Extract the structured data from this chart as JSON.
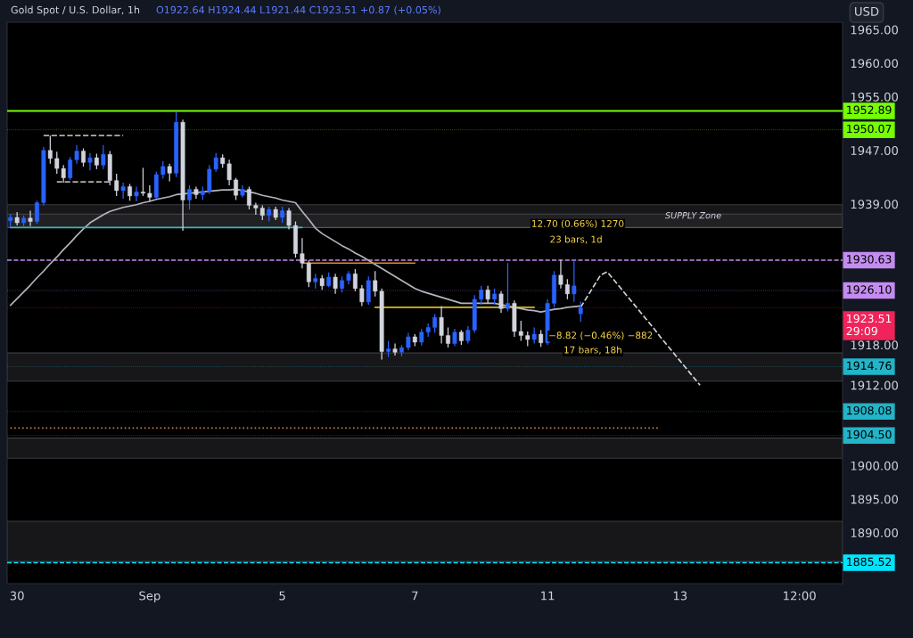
{
  "chart_data": {
    "type": "candlestick",
    "title": "Gold Spot / U.S. Dollar, 1h",
    "subtitle": "O1922.64 H1924.44 L1921.44 C1923.51 +0.87 (+0.05%)",
    "ylabel": "USD",
    "categories": [
      null,
      "30",
      null,
      null,
      null,
      null,
      null,
      null,
      null,
      null,
      null,
      null,
      null,
      null,
      null,
      null,
      null,
      null,
      null,
      null,
      null,
      "Sep",
      null,
      null,
      null,
      null,
      null,
      null,
      null,
      null,
      null,
      null,
      null,
      null,
      null,
      null,
      null,
      null,
      null,
      null,
      null,
      "5",
      null,
      null,
      null,
      null,
      null,
      null,
      null,
      null,
      null,
      null,
      null,
      null,
      null,
      null,
      null,
      null,
      null,
      null,
      null,
      "7",
      null,
      null,
      null,
      null,
      null,
      null,
      null,
      null,
      null,
      null,
      null,
      null,
      null,
      null,
      null,
      null,
      null,
      null,
      null,
      "11",
      null,
      null,
      null,
      null,
      null,
      null,
      null,
      null,
      null,
      null,
      null,
      null,
      null,
      null,
      null,
      null,
      null,
      null,
      null,
      "13",
      null,
      null,
      null,
      null,
      null,
      null,
      null,
      null,
      null,
      null,
      null,
      null,
      null,
      null,
      null,
      null,
      null,
      "12:00",
      null,
      null,
      null,
      null,
      null,
      null
    ],
    "ohlc": [
      [
        1936.5,
        1937.5,
        1935.6,
        1937.0
      ],
      [
        1937.0,
        1937.8,
        1935.8,
        1936.2
      ],
      [
        1936.2,
        1937.3,
        1935.5,
        1936.9
      ],
      [
        1936.9,
        1938.0,
        1935.7,
        1936.4
      ],
      [
        1936.4,
        1939.5,
        1936.0,
        1939.2
      ],
      [
        1939.2,
        1947.5,
        1938.8,
        1947.0
      ],
      [
        1947.0,
        1949.2,
        1945.0,
        1945.8
      ],
      [
        1945.8,
        1946.8,
        1943.5,
        1944.3
      ],
      [
        1944.3,
        1944.8,
        1942.2,
        1942.9
      ],
      [
        1942.9,
        1946.0,
        1942.6,
        1945.6
      ],
      [
        1945.6,
        1947.8,
        1945.0,
        1946.9
      ],
      [
        1946.9,
        1947.3,
        1944.6,
        1945.2
      ],
      [
        1945.2,
        1946.6,
        1944.0,
        1945.9
      ],
      [
        1945.9,
        1946.5,
        1944.2,
        1944.8
      ],
      [
        1944.8,
        1947.8,
        1944.2,
        1946.4
      ],
      [
        1946.4,
        1946.9,
        1941.8,
        1942.5
      ],
      [
        1942.5,
        1943.5,
        1940.2,
        1941.0
      ],
      [
        1941.0,
        1942.2,
        1939.8,
        1941.6
      ],
      [
        1941.6,
        1942.0,
        1939.5,
        1940.2
      ],
      [
        1940.2,
        1941.6,
        1939.4,
        1940.8
      ],
      [
        1940.8,
        1944.4,
        1940.2,
        1940.6
      ],
      [
        1940.6,
        1941.8,
        1939.4,
        1940.0
      ],
      [
        1940.0,
        1943.8,
        1939.8,
        1943.4
      ],
      [
        1943.4,
        1945.4,
        1942.8,
        1944.6
      ],
      [
        1944.6,
        1945.0,
        1942.4,
        1943.6
      ],
      [
        1943.6,
        1952.8,
        1943.0,
        1951.2
      ],
      [
        1951.2,
        1951.6,
        1935.0,
        1939.6
      ],
      [
        1939.6,
        1941.8,
        1938.2,
        1941.2
      ],
      [
        1941.2,
        1941.6,
        1939.8,
        1940.4
      ],
      [
        1940.4,
        1941.6,
        1939.6,
        1940.9
      ],
      [
        1940.9,
        1944.8,
        1940.5,
        1944.2
      ],
      [
        1944.2,
        1946.6,
        1943.8,
        1945.9
      ],
      [
        1945.9,
        1946.4,
        1944.4,
        1945.0
      ],
      [
        1945.0,
        1945.6,
        1941.8,
        1942.6
      ],
      [
        1942.6,
        1942.9,
        1939.6,
        1940.3
      ],
      [
        1940.3,
        1941.8,
        1940.0,
        1941.2
      ],
      [
        1941.2,
        1941.6,
        1938.2,
        1938.8
      ],
      [
        1938.8,
        1939.2,
        1937.4,
        1938.4
      ],
      [
        1938.4,
        1938.8,
        1936.6,
        1937.3
      ],
      [
        1937.3,
        1938.6,
        1936.4,
        1938.2
      ],
      [
        1938.2,
        1938.6,
        1936.6,
        1937.0
      ],
      [
        1937.0,
        1938.6,
        1936.2,
        1938.0
      ],
      [
        1938.0,
        1938.4,
        1935.2,
        1935.8
      ],
      [
        1935.8,
        1936.4,
        1931.0,
        1931.6
      ],
      [
        1931.6,
        1933.9,
        1929.4,
        1930.2
      ],
      [
        1930.2,
        1930.6,
        1926.6,
        1927.4
      ],
      [
        1927.4,
        1928.6,
        1926.4,
        1927.9
      ],
      [
        1927.9,
        1928.4,
        1926.2,
        1926.8
      ],
      [
        1926.8,
        1928.8,
        1926.6,
        1928.1
      ],
      [
        1928.1,
        1928.6,
        1925.6,
        1926.4
      ],
      [
        1926.4,
        1928.2,
        1925.8,
        1927.6
      ],
      [
        1927.6,
        1929.0,
        1927.0,
        1928.6
      ],
      [
        1928.6,
        1929.3,
        1926.0,
        1926.4
      ],
      [
        1926.4,
        1926.9,
        1923.8,
        1924.4
      ],
      [
        1924.4,
        1928.2,
        1924.0,
        1927.6
      ],
      [
        1927.6,
        1929.0,
        1925.2,
        1926.0
      ],
      [
        1926.0,
        1926.4,
        1915.8,
        1917.0
      ],
      [
        1917.0,
        1918.6,
        1916.2,
        1917.4
      ],
      [
        1917.4,
        1918.2,
        1916.4,
        1916.9
      ],
      [
        1916.9,
        1918.0,
        1916.3,
        1917.6
      ],
      [
        1917.6,
        1919.8,
        1917.2,
        1919.2
      ],
      [
        1919.2,
        1919.6,
        1917.8,
        1918.4
      ],
      [
        1918.4,
        1920.4,
        1917.9,
        1919.9
      ],
      [
        1919.9,
        1921.2,
        1919.2,
        1920.6
      ],
      [
        1920.6,
        1922.6,
        1919.8,
        1922.1
      ],
      [
        1922.1,
        1923.8,
        1918.2,
        1919.4
      ],
      [
        1919.4,
        1920.6,
        1917.6,
        1918.2
      ],
      [
        1918.2,
        1920.4,
        1917.8,
        1919.9
      ],
      [
        1919.9,
        1920.2,
        1918.0,
        1918.6
      ],
      [
        1918.6,
        1920.8,
        1918.2,
        1920.2
      ],
      [
        1920.2,
        1925.4,
        1919.8,
        1924.8
      ],
      [
        1924.8,
        1926.8,
        1924.0,
        1926.2
      ],
      [
        1926.2,
        1926.8,
        1924.2,
        1924.8
      ],
      [
        1924.8,
        1926.4,
        1924.0,
        1925.6
      ],
      [
        1925.6,
        1926.0,
        1922.8,
        1923.4
      ],
      [
        1923.4,
        1930.2,
        1923.0,
        1924.2
      ],
      [
        1924.2,
        1924.6,
        1919.2,
        1920.0
      ],
      [
        1920.0,
        1921.6,
        1918.6,
        1919.4
      ],
      [
        1919.4,
        1920.0,
        1917.8,
        1918.8
      ],
      [
        1918.8,
        1920.6,
        1918.2,
        1919.6
      ],
      [
        1919.6,
        1920.2,
        1917.7,
        1918.3
      ],
      [
        1918.3,
        1924.8,
        1918.0,
        1924.2
      ],
      [
        1924.2,
        1929.0,
        1923.6,
        1928.4
      ],
      [
        1928.4,
        1930.7,
        1926.4,
        1927.0
      ],
      [
        1927.0,
        1927.8,
        1924.8,
        1925.6
      ],
      [
        1925.6,
        1930.6,
        1924.4,
        1926.8
      ],
      [
        1922.64,
        1924.44,
        1921.44,
        1923.51
      ],
      null,
      null,
      null,
      null,
      null,
      null,
      null,
      null,
      null,
      null,
      null,
      null,
      null,
      null,
      null,
      null,
      null,
      null,
      null,
      null,
      null,
      null,
      null,
      null,
      null,
      null,
      null,
      null,
      null,
      null,
      null,
      null,
      null,
      null,
      null,
      null,
      null,
      null,
      null
    ],
    "colors": [
      "#2962ff",
      "#d1d4dc",
      "#2962ff",
      "#d1d4dc",
      "#2962ff",
      "#2962ff",
      "#d1d4dc",
      "#d1d4dc",
      "#d1d4dc",
      "#2962ff",
      "#2962ff",
      "#d1d4dc",
      "#2962ff",
      "#d1d4dc",
      "#2962ff",
      "#d1d4dc",
      "#d1d4dc",
      "#2962ff",
      "#d1d4dc",
      "#2962ff",
      "#d1d4dc",
      "#d1d4dc",
      "#2962ff",
      "#2962ff",
      "#d1d4dc",
      "#2962ff",
      "#d1d4dc",
      "#2962ff",
      "#d1d4dc",
      "#2962ff",
      "#2962ff",
      "#2962ff",
      "#d1d4dc",
      "#d1d4dc",
      "#d1d4dc",
      "#2962ff",
      "#d1d4dc",
      "#d1d4dc",
      "#d1d4dc",
      "#2962ff",
      "#d1d4dc",
      "#2962ff",
      "#d1d4dc",
      "#d1d4dc",
      "#d1d4dc",
      "#d1d4dc",
      "#2962ff",
      "#d1d4dc",
      "#2962ff",
      "#d1d4dc",
      "#2962ff",
      "#2962ff",
      "#d1d4dc",
      "#d1d4dc",
      "#2962ff",
      "#d1d4dc",
      "#d1d4dc",
      "#2962ff",
      "#d1d4dc",
      "#2962ff",
      "#2962ff",
      "#d1d4dc",
      "#2962ff",
      "#2962ff",
      "#2962ff",
      "#d1d4dc",
      "#d1d4dc",
      "#2962ff",
      "#d1d4dc",
      "#2962ff",
      "#2962ff",
      "#2962ff",
      "#d1d4dc",
      "#2962ff",
      "#d1d4dc",
      "#2962ff",
      "#d1d4dc",
      "#d1d4dc",
      "#d1d4dc",
      "#2962ff",
      "#d1d4dc",
      "#2962ff",
      "#2962ff",
      "#d1d4dc",
      "#d1d4dc",
      "#2962ff",
      "#2962ff",
      null,
      null,
      null,
      null,
      null,
      null,
      null,
      null,
      null,
      null,
      null,
      null,
      null,
      null,
      null,
      null,
      null,
      null,
      null,
      null,
      null,
      null,
      null,
      null,
      null,
      null,
      null,
      null,
      null,
      null,
      null,
      null,
      null,
      null,
      null,
      null,
      null,
      null,
      null
    ],
    "series": [
      {
        "type": "line",
        "color": "#b2b5be",
        "line_style": "solid",
        "values": [
          1923.9,
          1924.9,
          1925.9,
          1926.9,
          1928.0,
          1929.0,
          1930.1,
          1931.1,
          1932.2,
          1933.2,
          1934.3,
          1935.3,
          1936.2,
          1936.8,
          1937.4,
          1937.9,
          1938.2,
          1938.5,
          1938.7,
          1938.9,
          1939.2,
          1939.4,
          1939.7,
          1939.9,
          1940.1,
          1940.4,
          1940.5,
          1940.6,
          1940.7,
          1940.8,
          1940.9,
          1941.0,
          1941.1,
          1941.1,
          1941.2,
          1941.0,
          1940.8,
          1940.6,
          1940.3,
          1940.1,
          1939.9,
          1939.6,
          1939.4,
          1939.2,
          1937.9,
          1936.7,
          1935.4,
          1934.6,
          1934.0,
          1933.4,
          1932.8,
          1932.3,
          1931.7,
          1931.2,
          1930.6,
          1930.0,
          1929.4,
          1928.8,
          1928.2,
          1927.6,
          1927.0,
          1926.4,
          1926.0,
          1925.7,
          1925.4,
          1925.1,
          1924.8,
          1924.5,
          1924.2,
          1924.2,
          1924.2,
          1924.2,
          1924.2,
          1924.2,
          1924.0,
          1923.8,
          1923.6,
          1923.4,
          1923.2,
          1923.1,
          1922.9,
          1923.1,
          1923.3,
          1923.4,
          1923.6,
          1923.7,
          1923.8,
          null,
          null,
          null,
          null,
          null,
          null,
          null,
          null,
          null,
          null,
          null,
          null,
          null,
          null,
          null,
          null,
          null,
          null,
          null,
          null,
          null,
          null,
          null,
          null,
          null,
          null,
          null,
          null,
          null,
          null,
          null,
          null,
          null,
          null,
          null,
          null,
          null,
          null,
          null
        ]
      },
      {
        "type": "line",
        "color": "#b0b0b0",
        "line_style": "dashed",
        "values": [
          null,
          null,
          null,
          null,
          null,
          1949.2,
          1949.2,
          1949.2,
          1949.2,
          1949.2,
          1949.2,
          1949.2,
          1949.2,
          1949.2,
          1949.2,
          1949.2,
          1949.2,
          1949.2,
          null,
          null,
          null,
          null,
          null,
          null,
          null,
          null,
          null,
          null,
          null,
          null,
          null,
          null,
          null,
          null,
          null,
          null,
          null,
          null,
          null,
          null,
          null,
          null,
          null,
          null,
          null,
          null,
          null,
          null,
          null,
          null,
          null,
          null,
          null,
          null,
          null,
          null,
          null,
          null,
          null,
          null,
          null,
          null,
          null,
          null,
          null,
          null,
          null,
          null,
          null,
          null,
          null,
          null,
          null,
          null,
          null,
          null,
          null,
          null,
          null,
          null,
          null,
          null,
          null,
          null,
          null,
          null,
          null,
          null,
          null,
          null,
          null,
          null,
          null,
          null,
          null,
          null,
          null,
          null,
          null,
          null,
          null,
          null,
          null,
          null,
          null,
          null,
          null,
          null,
          null,
          null,
          null,
          null,
          null,
          null,
          null,
          null,
          null,
          null,
          null,
          null,
          null,
          null,
          null,
          null,
          null,
          null
        ]
      },
      {
        "type": "line",
        "color": "#b0b0b0",
        "line_style": "dashed",
        "values": [
          null,
          null,
          null,
          null,
          null,
          null,
          null,
          1942.3,
          1942.3,
          1942.3,
          1942.3,
          1942.3,
          1942.3,
          1942.3,
          1942.3,
          1942.3,
          null,
          null,
          null,
          null,
          null,
          null,
          null,
          null,
          null,
          null,
          null,
          null,
          null,
          null,
          null,
          null,
          null,
          null,
          null,
          null,
          null,
          null,
          null,
          null,
          null,
          null,
          null,
          null,
          null,
          null,
          null,
          null,
          null,
          null,
          null,
          null,
          null,
          null,
          null,
          null,
          null,
          null,
          null,
          null,
          null,
          null,
          null,
          null,
          null,
          null,
          null,
          null,
          null,
          null,
          null,
          null,
          null,
          null,
          null,
          null,
          null,
          null,
          null,
          null,
          null,
          null,
          null,
          null,
          null,
          null,
          null,
          null,
          null,
          null,
          null,
          null,
          null,
          null,
          null,
          null,
          null,
          null,
          null,
          null,
          null,
          null,
          null,
          null,
          null,
          null,
          null,
          null,
          null,
          null,
          null,
          null,
          null,
          null,
          null,
          null,
          null,
          null,
          null,
          null,
          null,
          null,
          null,
          null,
          null,
          null
        ]
      },
      {
        "type": "line",
        "color": "#3fb3b3",
        "line_style": "solid",
        "values": [
          1935.5,
          1935.5,
          1935.5,
          1935.5,
          1935.5,
          1935.5,
          1935.5,
          1935.5,
          1935.5,
          1935.5,
          1935.5,
          1935.5,
          1935.5,
          1935.5,
          1935.5,
          1935.5,
          1935.5,
          1935.5,
          1935.5,
          1935.5,
          1935.5,
          1935.5,
          1935.5,
          1935.5,
          1935.5,
          1935.5,
          1935.5,
          1935.5,
          1935.5,
          1935.5,
          1935.5,
          1935.5,
          1935.5,
          1935.5,
          1935.5,
          1935.5,
          1935.5,
          1935.5,
          1935.5,
          1935.5,
          1935.5,
          1935.5,
          1935.5,
          1935.5,
          1935.5,
          null,
          null,
          null,
          null,
          null,
          null,
          null,
          null,
          null,
          null,
          null,
          null,
          null,
          null,
          null,
          null,
          null,
          null,
          null,
          null,
          null,
          null,
          null,
          null,
          null,
          null,
          null,
          null,
          null,
          null,
          null,
          null,
          null,
          null,
          null,
          null,
          null,
          null,
          null,
          null,
          null,
          null,
          null,
          null,
          null,
          null,
          null,
          null,
          null,
          null,
          null,
          null,
          null,
          null,
          null,
          null,
          null,
          null,
          null,
          null,
          null,
          null,
          null,
          null,
          null,
          null,
          null,
          null,
          null,
          null,
          null,
          null,
          null,
          null,
          null,
          null,
          null,
          null,
          null,
          null,
          null
        ]
      },
      {
        "type": "line",
        "color": "#e08a2a",
        "line_style": "solid",
        "values": [
          null,
          null,
          null,
          null,
          null,
          null,
          null,
          null,
          null,
          null,
          null,
          null,
          null,
          null,
          null,
          null,
          null,
          null,
          null,
          null,
          null,
          null,
          null,
          null,
          null,
          null,
          null,
          null,
          null,
          null,
          null,
          null,
          null,
          null,
          null,
          null,
          null,
          null,
          null,
          null,
          null,
          null,
          null,
          null,
          1930.2,
          1930.2,
          1930.2,
          1930.2,
          1930.2,
          1930.2,
          1930.2,
          1930.2,
          1930.2,
          1930.2,
          1930.2,
          1930.2,
          1930.2,
          1930.2,
          1930.2,
          1930.2,
          1930.2,
          1930.2,
          null,
          null,
          null,
          null,
          null,
          null,
          null,
          null,
          null,
          null,
          null,
          null,
          null,
          null,
          null,
          null,
          null,
          null,
          null,
          null,
          null,
          null,
          null,
          null,
          null,
          null,
          null,
          null,
          null,
          null,
          null,
          null,
          null,
          null,
          null,
          null,
          null,
          null,
          null,
          null,
          null,
          null,
          null,
          null,
          null,
          null,
          null,
          null,
          null,
          null,
          null,
          null,
          null,
          null,
          null,
          null,
          null,
          null,
          null,
          null,
          null,
          null,
          null,
          null
        ]
      },
      {
        "type": "line",
        "color": "#d4b82a",
        "line_style": "solid",
        "values": [
          null,
          null,
          null,
          null,
          null,
          null,
          null,
          null,
          null,
          null,
          null,
          null,
          null,
          null,
          null,
          null,
          null,
          null,
          null,
          null,
          null,
          null,
          null,
          null,
          null,
          null,
          null,
          null,
          null,
          null,
          null,
          null,
          null,
          null,
          null,
          null,
          null,
          null,
          null,
          null,
          null,
          null,
          null,
          null,
          null,
          null,
          null,
          null,
          null,
          null,
          null,
          null,
          null,
          null,
          null,
          1923.6,
          1923.6,
          1923.6,
          1923.6,
          1923.6,
          1923.6,
          1923.6,
          1923.6,
          1923.6,
          1923.6,
          1923.6,
          1923.6,
          1923.6,
          1923.6,
          1923.6,
          1923.6,
          1923.6,
          1923.6,
          1923.6,
          1923.6,
          1923.6,
          1923.6,
          1923.6,
          1923.6,
          1923.6,
          null,
          null,
          null,
          null,
          null,
          null,
          null,
          null,
          null,
          null,
          null,
          null,
          null,
          null,
          null,
          null,
          null,
          null,
          null,
          null,
          null,
          null,
          null,
          null,
          null,
          null,
          null,
          null,
          null,
          null,
          null,
          null,
          null,
          null,
          null,
          null,
          null,
          null,
          null,
          null,
          null,
          null,
          null,
          null,
          null,
          null
        ]
      },
      {
        "type": "line",
        "color": "#c08040",
        "line_style": "dotted",
        "values": [
          1905.6,
          1905.6,
          1905.6,
          1905.6,
          1905.6,
          1905.6,
          1905.6,
          1905.6,
          1905.6,
          1905.6,
          1905.6,
          1905.6,
          1905.6,
          1905.6,
          1905.6,
          1905.6,
          1905.6,
          1905.6,
          1905.6,
          1905.6,
          1905.6,
          1905.6,
          1905.6,
          1905.6,
          1905.6,
          1905.6,
          1905.6,
          1905.6,
          1905.6,
          1905.6,
          1905.6,
          1905.6,
          1905.6,
          1905.6,
          1905.6,
          1905.6,
          1905.6,
          1905.6,
          1905.6,
          1905.6,
          1905.6,
          1905.6,
          1905.6,
          1905.6,
          1905.6,
          1905.6,
          1905.6,
          1905.6,
          1905.6,
          1905.6,
          1905.6,
          1905.6,
          1905.6,
          1905.6,
          1905.6,
          1905.6,
          1905.6,
          1905.6,
          1905.6,
          1905.6,
          1905.6,
          1905.6,
          1905.6,
          1905.6,
          1905.6,
          1905.6,
          1905.6,
          1905.6,
          1905.6,
          1905.6,
          1905.6,
          1905.6,
          1905.6,
          1905.6,
          1905.6,
          1905.6,
          1905.6,
          1905.6,
          1905.6,
          1905.6,
          1905.6,
          1905.6,
          1905.6,
          1905.6,
          1905.6,
          1905.6,
          1905.6,
          1905.6,
          1905.6,
          1905.6,
          1905.6,
          1905.6,
          1905.6,
          1905.6,
          1905.6,
          1905.6,
          1905.6,
          1905.6,
          1905.6,
          null,
          null,
          null,
          null,
          null,
          null,
          null,
          null,
          null,
          null,
          null,
          null,
          null,
          null,
          null,
          null,
          null,
          null,
          null,
          null,
          null,
          null,
          null,
          null,
          null,
          null,
          null
        ]
      },
      {
        "type": "line",
        "color": "#d1d4dc",
        "line_style": "dashed",
        "values": [
          null,
          null,
          null,
          null,
          null,
          null,
          null,
          null,
          null,
          null,
          null,
          null,
          null,
          null,
          null,
          null,
          null,
          null,
          null,
          null,
          null,
          null,
          null,
          null,
          null,
          null,
          null,
          null,
          null,
          null,
          null,
          null,
          null,
          null,
          null,
          null,
          null,
          null,
          null,
          null,
          null,
          null,
          null,
          null,
          null,
          null,
          null,
          null,
          null,
          null,
          null,
          null,
          null,
          null,
          null,
          null,
          null,
          null,
          null,
          null,
          null,
          null,
          null,
          null,
          null,
          null,
          null,
          null,
          null,
          null,
          null,
          null,
          null,
          null,
          null,
          null,
          null,
          null,
          null,
          null,
          null,
          null,
          null,
          null,
          null,
          null,
          1923.6,
          1925.2,
          1926.8,
          1928.4,
          1928.9,
          1927.7,
          1926.5,
          1925.3,
          1924.1,
          1922.9,
          1921.7,
          1920.5,
          1919.2,
          1918.0,
          1916.8,
          1915.6,
          1914.4,
          1913.2,
          1912.0,
          null,
          null,
          null,
          null,
          null,
          null,
          null,
          null,
          null,
          null,
          null,
          null,
          null,
          null,
          null,
          null,
          null,
          null,
          null,
          null,
          null
        ]
      }
    ],
    "ref_lines": [
      {
        "axis": "y",
        "value": 1952.89,
        "label": "1952.89",
        "color": "#76ff03",
        "line_style": "solid"
      },
      {
        "axis": "y",
        "value": 1950.07,
        "label": "1950.07",
        "color": "#76ff03",
        "line_style": "dotted"
      },
      {
        "axis": "y",
        "value": 1930.63,
        "label": "1930.63",
        "color": "#c48cf0",
        "line_style": "dashed"
      },
      {
        "axis": "y",
        "value": 1926.1,
        "label": "1926.10",
        "color": "#c48cf0",
        "line_style": "dotted"
      },
      {
        "axis": "y",
        "value": 1923.51,
        "label": "1923.51\n29:09",
        "color": "#f0245a",
        "line_style": "dotted"
      },
      {
        "axis": "y",
        "value": 1914.76,
        "label": "1914.76",
        "color": "#22b5c9",
        "line_style": "dotted"
      },
      {
        "axis": "y",
        "value": 1908.08,
        "label": "1908.08",
        "color": "#22b5c9",
        "line_style": "dotted"
      },
      {
        "axis": "y",
        "value": 1904.5,
        "label": "1904.50",
        "color": "#22b5c9",
        "line_style": "dotted"
      },
      {
        "axis": "y",
        "value": 1885.52,
        "label": "1885.52",
        "color": "#00e5ff",
        "line_style": "dashed"
      }
    ],
    "bands": [
      {
        "axis": "y",
        "from": 1935.5,
        "to": 1938.9,
        "label": "SUPPLY Zone",
        "color": "#2a2a2e"
      },
      {
        "axis": "y",
        "from": 1935.5,
        "to": 1937.5,
        "label": null,
        "color": "#2a2a2e"
      },
      {
        "axis": "y",
        "from": 1912.6,
        "to": 1916.8,
        "label": null,
        "color": "#2a2a2e"
      },
      {
        "axis": "y",
        "from": 1901.1,
        "to": 1904.1,
        "label": null,
        "color": "#2a2a2e"
      },
      {
        "axis": "y",
        "from": 1885.7,
        "to": 1891.7,
        "label": null,
        "color": "#2a2a2e"
      }
    ],
    "annotations": [
      "12.70 (0.66%) 1270",
      "23 bars, 1d",
      "−8.82 (−0.46%) −882",
      "17 bars, 18h"
    ],
    "ylim": [
      1882.4,
      1966.1
    ],
    "yticks": [
      {
        "value": 1965,
        "label": "1965.00"
      },
      {
        "value": 1960,
        "label": "1960.00"
      },
      {
        "value": 1955,
        "label": "1955.00"
      },
      {
        "value": 1947,
        "label": "1947.00"
      },
      {
        "value": 1939,
        "label": "1939.00"
      },
      {
        "value": 1918,
        "label": "1918.00"
      },
      {
        "value": 1912,
        "label": "1912.00"
      },
      {
        "value": 1900,
        "label": "1900.00"
      },
      {
        "value": 1895,
        "label": "1895.00"
      },
      {
        "value": 1890,
        "label": "1890.00"
      }
    ],
    "grid": false,
    "legend": false
  }
}
